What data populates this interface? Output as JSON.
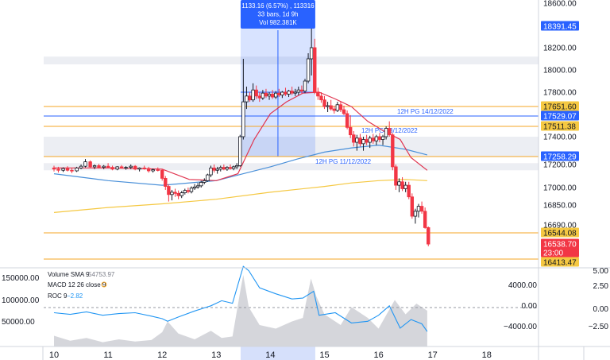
{
  "chart_data": {
    "type": "candlestick",
    "price_axis": {
      "ticks": [
        18600.0,
        18200.0,
        18000.0,
        17800.0,
        17400.0,
        17200.0,
        17000.0,
        16850.0,
        16690.0
      ]
    },
    "time_axis": {
      "labels": [
        "10",
        "11",
        "12",
        "13",
        "14",
        "15",
        "16",
        "17",
        "18"
      ]
    },
    "price_badges": [
      {
        "value": "18391.45",
        "bg": "#2962ff",
        "fg": "#ffffff"
      },
      {
        "value": "17651.60",
        "bg": "#f5c842",
        "fg": "#131722"
      },
      {
        "value": "17529.07",
        "bg": "#2962ff",
        "fg": "#ffffff"
      },
      {
        "value": "17511.38",
        "bg": "#f5c842",
        "fg": "#131722"
      },
      {
        "value": "17258.29",
        "bg": "#2962ff",
        "fg": "#ffffff"
      },
      {
        "value": "16544.08",
        "bg": "#f5c842",
        "fg": "#131722"
      },
      {
        "value": "16538.70",
        "bg": "#f23645",
        "fg": "#ffffff"
      },
      {
        "value": "23:00",
        "bg": "#f23645",
        "fg": "#ffffff"
      },
      {
        "value": "16413.47",
        "bg": "#f5c842",
        "fg": "#131722"
      }
    ],
    "levels": [
      {
        "price": 17651.6,
        "color": "#f5a623",
        "label": "12H PG 14/12/2022"
      },
      {
        "price": 17529.07,
        "color": "#2962ff",
        "label": ""
      },
      {
        "price": 17511.38,
        "color": "#f5a623",
        "label": "12H PG 13/12/2022"
      },
      {
        "price": 17258.29,
        "color": "#f5a623",
        "label": "12H PG 11/12/2022"
      },
      {
        "price": 16544.08,
        "color": "#f5a623",
        "label": ""
      },
      {
        "price": 16413.47,
        "color": "#f5a623",
        "label": ""
      }
    ],
    "zones": [
      {
        "from": 18120,
        "to": 18050
      },
      {
        "from": 17400,
        "to": 17258
      },
      {
        "from": 17210,
        "to": 17150
      }
    ],
    "selection": {
      "from_day": 13.45,
      "to_day": 14.83,
      "line1": "1133.16 (6.57%) , 113316",
      "line2": "33 bars, 1d 9h",
      "line3": "Vol 982.381K",
      "highlight_day": "14"
    },
    "candles": [
      [
        10.0,
        17170,
        17190,
        17140,
        17160
      ],
      [
        10.08,
        17160,
        17180,
        17130,
        17150
      ],
      [
        10.17,
        17150,
        17175,
        17135,
        17165
      ],
      [
        10.25,
        17165,
        17185,
        17140,
        17150
      ],
      [
        10.33,
        17150,
        17170,
        17125,
        17145
      ],
      [
        10.42,
        17145,
        17180,
        17135,
        17170
      ],
      [
        10.5,
        17170,
        17200,
        17160,
        17185
      ],
      [
        10.58,
        17185,
        17240,
        17175,
        17220
      ],
      [
        10.67,
        17220,
        17230,
        17170,
        17180
      ],
      [
        10.75,
        17180,
        17200,
        17160,
        17190
      ],
      [
        10.83,
        17190,
        17205,
        17165,
        17175
      ],
      [
        10.92,
        17175,
        17195,
        17160,
        17185
      ],
      [
        11.0,
        17185,
        17210,
        17170,
        17175
      ],
      [
        11.08,
        17175,
        17190,
        17150,
        17160
      ],
      [
        11.17,
        17160,
        17185,
        17150,
        17180
      ],
      [
        11.25,
        17180,
        17195,
        17165,
        17170
      ],
      [
        11.33,
        17170,
        17185,
        17155,
        17175
      ],
      [
        11.42,
        17175,
        17200,
        17160,
        17185
      ],
      [
        11.5,
        17185,
        17195,
        17150,
        17160
      ],
      [
        11.58,
        17160,
        17175,
        17140,
        17170
      ],
      [
        11.67,
        17170,
        17190,
        17155,
        17165
      ],
      [
        11.75,
        17165,
        17180,
        17130,
        17145
      ],
      [
        11.83,
        17145,
        17165,
        17130,
        17155
      ],
      [
        11.92,
        17155,
        17175,
        17140,
        17150
      ],
      [
        12.0,
        17150,
        17160,
        17060,
        17080
      ],
      [
        12.06,
        17080,
        17100,
        16980,
        17010
      ],
      [
        12.12,
        17010,
        17030,
        16880,
        16940
      ],
      [
        12.18,
        16940,
        16980,
        16890,
        16960
      ],
      [
        12.24,
        16960,
        16990,
        16920,
        16950
      ],
      [
        12.3,
        16950,
        16975,
        16900,
        16930
      ],
      [
        12.36,
        16930,
        16970,
        16910,
        16955
      ],
      [
        12.42,
        16955,
        16990,
        16940,
        16975
      ],
      [
        12.48,
        16975,
        17000,
        16950,
        16965
      ],
      [
        12.54,
        16965,
        17010,
        16950,
        16995
      ],
      [
        12.6,
        16995,
        17030,
        16980,
        17005
      ],
      [
        12.66,
        17005,
        17040,
        16990,
        17015
      ],
      [
        12.72,
        17015,
        17060,
        17000,
        17045
      ],
      [
        12.78,
        17045,
        17080,
        17030,
        17060
      ],
      [
        12.84,
        17060,
        17120,
        17050,
        17110
      ],
      [
        12.9,
        17110,
        17190,
        17090,
        17170
      ],
      [
        12.96,
        17170,
        17200,
        17130,
        17150
      ],
      [
        13.02,
        17150,
        17180,
        17120,
        17160
      ],
      [
        13.08,
        17160,
        17190,
        17140,
        17175
      ],
      [
        13.14,
        17175,
        17200,
        17150,
        17160
      ],
      [
        13.2,
        17160,
        17185,
        17145,
        17175
      ],
      [
        13.26,
        17175,
        17200,
        17155,
        17165
      ],
      [
        13.32,
        17165,
        17190,
        17150,
        17180
      ],
      [
        13.38,
        17180,
        17210,
        17160,
        17190
      ],
      [
        13.44,
        17190,
        17420,
        17180,
        17400
      ],
      [
        13.5,
        17400,
        18100,
        17380,
        17700
      ],
      [
        13.56,
        17700,
        17850,
        17620,
        17760
      ],
      [
        13.62,
        17760,
        17800,
        17700,
        17720
      ],
      [
        13.68,
        17720,
        17880,
        17700,
        17820
      ],
      [
        13.74,
        17820,
        17860,
        17730,
        17760
      ],
      [
        13.8,
        17760,
        17800,
        17700,
        17740
      ],
      [
        13.86,
        17740,
        17820,
        17720,
        17790
      ],
      [
        13.92,
        17790,
        17830,
        17740,
        17760
      ],
      [
        13.98,
        17760,
        17800,
        17720,
        17780
      ],
      [
        14.04,
        17780,
        17820,
        17730,
        17750
      ],
      [
        14.1,
        17750,
        17810,
        17730,
        17790
      ],
      [
        14.16,
        17790,
        17830,
        17750,
        17770
      ],
      [
        14.22,
        17770,
        17810,
        17740,
        17800
      ],
      [
        14.28,
        17800,
        17840,
        17760,
        17780
      ],
      [
        14.34,
        17780,
        17820,
        17750,
        17810
      ],
      [
        14.4,
        17810,
        17850,
        17770,
        17790
      ],
      [
        14.46,
        17790,
        17830,
        17760,
        17800
      ],
      [
        14.52,
        17800,
        17850,
        17770,
        17820
      ],
      [
        14.58,
        17820,
        17860,
        17790,
        17810
      ],
      [
        14.64,
        17810,
        17920,
        17790,
        17900
      ],
      [
        14.7,
        17900,
        18150,
        17880,
        18100
      ],
      [
        14.76,
        18100,
        18391,
        17950,
        18200
      ],
      [
        14.82,
        18200,
        18280,
        17780,
        17800
      ],
      [
        14.88,
        17800,
        17840,
        17720,
        17760
      ],
      [
        14.94,
        17760,
        17800,
        17690,
        17720
      ],
      [
        15.0,
        17720,
        17760,
        17620,
        17650
      ],
      [
        15.06,
        17650,
        17700,
        17580,
        17660
      ],
      [
        15.12,
        17660,
        17720,
        17600,
        17620
      ],
      [
        15.18,
        17620,
        17660,
        17560,
        17600
      ],
      [
        15.24,
        17600,
        17700,
        17580,
        17670
      ],
      [
        15.3,
        17670,
        17700,
        17580,
        17610
      ],
      [
        15.36,
        17610,
        17660,
        17540,
        17560
      ],
      [
        15.42,
        17560,
        17600,
        17480,
        17500
      ],
      [
        15.48,
        17500,
        17540,
        17390,
        17420
      ],
      [
        15.54,
        17420,
        17460,
        17330,
        17360
      ],
      [
        15.6,
        17360,
        17420,
        17300,
        17390
      ],
      [
        15.66,
        17390,
        17430,
        17330,
        17350
      ],
      [
        15.72,
        17350,
        17400,
        17300,
        17380
      ],
      [
        15.78,
        17380,
        17420,
        17340,
        17360
      ],
      [
        15.84,
        17360,
        17410,
        17320,
        17390
      ],
      [
        15.9,
        17390,
        17430,
        17350,
        17370
      ],
      [
        15.96,
        17370,
        17420,
        17340,
        17400
      ],
      [
        16.02,
        17400,
        17440,
        17360,
        17380
      ],
      [
        16.08,
        17380,
        17420,
        17340,
        17400
      ],
      [
        16.14,
        17400,
        17511,
        17380,
        17490
      ],
      [
        16.2,
        17490,
        17520,
        17400,
        17420
      ],
      [
        16.26,
        17420,
        17440,
        17150,
        17180
      ],
      [
        16.32,
        17180,
        17200,
        16980,
        17020
      ],
      [
        16.38,
        17020,
        17080,
        16960,
        17050
      ],
      [
        16.44,
        17050,
        17090,
        16970,
        16990
      ],
      [
        16.5,
        16990,
        17050,
        16960,
        17020
      ],
      [
        16.56,
        17020,
        17050,
        16900,
        16920
      ],
      [
        16.62,
        16920,
        16950,
        16740,
        16760
      ],
      [
        16.68,
        16760,
        16820,
        16700,
        16800
      ],
      [
        16.74,
        16800,
        16860,
        16750,
        16840
      ],
      [
        16.8,
        16840,
        16880,
        16780,
        16800
      ],
      [
        16.86,
        16800,
        16830,
        16620,
        16640
      ],
      [
        16.92,
        16640,
        16660,
        16520,
        16538
      ]
    ],
    "ma_red": [
      [
        10.0,
        17170
      ],
      [
        11.0,
        17170
      ],
      [
        12.0,
        17160
      ],
      [
        12.5,
        17070
      ],
      [
        13.0,
        17060
      ],
      [
        13.4,
        17120
      ],
      [
        13.7,
        17380
      ],
      [
        14.0,
        17560
      ],
      [
        14.3,
        17700
      ],
      [
        14.6,
        17790
      ],
      [
        14.9,
        17800
      ],
      [
        15.2,
        17730
      ],
      [
        15.5,
        17650
      ],
      [
        15.8,
        17520
      ],
      [
        16.1,
        17460
      ],
      [
        16.4,
        17380
      ],
      [
        16.6,
        17250
      ],
      [
        16.9,
        17150
      ]
    ],
    "ma_blue": [
      [
        10.0,
        17120
      ],
      [
        11.0,
        17060
      ],
      [
        12.0,
        17020
      ],
      [
        13.0,
        17060
      ],
      [
        13.5,
        17120
      ],
      [
        14.0,
        17180
      ],
      [
        14.5,
        17240
      ],
      [
        15.0,
        17290
      ],
      [
        15.5,
        17320
      ],
      [
        16.0,
        17340
      ],
      [
        16.5,
        17310
      ],
      [
        16.9,
        17270
      ]
    ],
    "ma_yellow": [
      [
        10.0,
        16790
      ],
      [
        11.0,
        16830
      ],
      [
        12.0,
        16860
      ],
      [
        13.0,
        16900
      ],
      [
        14.0,
        16960
      ],
      [
        15.0,
        17010
      ],
      [
        15.5,
        17040
      ],
      [
        16.0,
        17060
      ],
      [
        16.5,
        17070
      ],
      [
        16.9,
        17060
      ]
    ],
    "indicators": {
      "volume_label": "Volume SMA 9",
      "volume_value": "54753.97",
      "macd_label": "MACD 12 26 close 9",
      "roc_label": "ROC 9",
      "roc_value": "−2.82",
      "left_ticks": [
        "150000.00",
        "100000.00",
        "50000.00"
      ],
      "right_ticks_a": [
        "4000.00",
        "0.00",
        "−4000.00"
      ],
      "right_ticks_b": [
        "5.00",
        "2.50",
        "0.00",
        "−2.50"
      ],
      "roc": [
        [
          10.0,
          -0.6
        ],
        [
          10.3,
          -0.8
        ],
        [
          10.6,
          -0.5
        ],
        [
          10.9,
          -0.9
        ],
        [
          11.2,
          -0.7
        ],
        [
          11.5,
          -0.6
        ],
        [
          11.8,
          -1.0
        ],
        [
          12.0,
          -1.3
        ],
        [
          12.1,
          -1.6
        ],
        [
          12.3,
          -1.1
        ],
        [
          12.6,
          -0.4
        ],
        [
          12.9,
          0.2
        ],
        [
          13.1,
          0.8
        ],
        [
          13.3,
          0.5
        ],
        [
          13.5,
          4.8
        ],
        [
          13.6,
          4.3
        ],
        [
          13.8,
          2.3
        ],
        [
          14.1,
          1.6
        ],
        [
          14.4,
          1.0
        ],
        [
          14.6,
          1.1
        ],
        [
          14.8,
          1.9
        ],
        [
          14.9,
          -0.9
        ],
        [
          15.2,
          -0.6
        ],
        [
          15.5,
          -1.8
        ],
        [
          15.8,
          -1.6
        ],
        [
          16.0,
          -0.9
        ],
        [
          16.2,
          0.2
        ],
        [
          16.4,
          -2.4
        ],
        [
          16.6,
          -1.4
        ],
        [
          16.8,
          -1.9
        ],
        [
          16.9,
          -2.8
        ]
      ],
      "volume": [
        [
          10.0,
          15
        ],
        [
          10.3,
          8
        ],
        [
          10.6,
          12
        ],
        [
          10.9,
          6
        ],
        [
          11.2,
          10
        ],
        [
          11.5,
          7
        ],
        [
          11.8,
          9
        ],
        [
          12.0,
          20
        ],
        [
          12.1,
          35
        ],
        [
          12.3,
          18
        ],
        [
          12.6,
          10
        ],
        [
          12.9,
          22
        ],
        [
          13.1,
          12
        ],
        [
          13.3,
          14
        ],
        [
          13.45,
          80
        ],
        [
          13.5,
          100
        ],
        [
          13.6,
          55
        ],
        [
          13.8,
          30
        ],
        [
          14.1,
          25
        ],
        [
          14.4,
          35
        ],
        [
          14.6,
          40
        ],
        [
          14.75,
          95
        ],
        [
          14.85,
          70
        ],
        [
          15.0,
          45
        ],
        [
          15.3,
          30
        ],
        [
          15.5,
          55
        ],
        [
          15.8,
          40
        ],
        [
          16.0,
          25
        ],
        [
          16.3,
          65
        ],
        [
          16.5,
          45
        ],
        [
          16.7,
          60
        ],
        [
          16.9,
          50
        ]
      ]
    }
  }
}
